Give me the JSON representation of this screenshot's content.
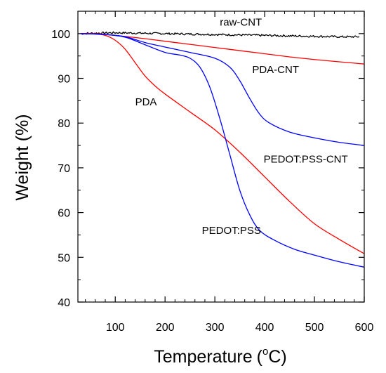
{
  "chart_data": {
    "type": "line",
    "xlabel": "Temperature",
    "xlabel_unit_base": "(",
    "xlabel_unit_sup": "o",
    "xlabel_unit_rest": "C)",
    "ylabel": "Weight (%)",
    "xlim": [
      25,
      600
    ],
    "ylim": [
      40,
      105
    ],
    "x_ticks": [
      100,
      200,
      300,
      400,
      500,
      600
    ],
    "y_ticks": [
      40,
      50,
      60,
      70,
      80,
      90,
      100
    ],
    "x_minor_step": 20,
    "y_minor_step": 5,
    "grid": false,
    "series": [
      {
        "name": "raw-CNT",
        "color": "#000000",
        "noisy": true,
        "points": [
          [
            30,
            100.0
          ],
          [
            60,
            100.1
          ],
          [
            100,
            100.2
          ],
          [
            150,
            100.1
          ],
          [
            200,
            100.0
          ],
          [
            250,
            99.9
          ],
          [
            300,
            99.8
          ],
          [
            350,
            99.7
          ],
          [
            400,
            99.6
          ],
          [
            450,
            99.5
          ],
          [
            500,
            99.4
          ],
          [
            550,
            99.3
          ],
          [
            590,
            99.3
          ]
        ]
      },
      {
        "name": "PDA-CNT",
        "color": "#ff0000",
        "noisy": false,
        "points": [
          [
            30,
            100.0
          ],
          [
            60,
            100.0
          ],
          [
            100,
            99.6
          ],
          [
            150,
            99.0
          ],
          [
            200,
            98.3
          ],
          [
            250,
            97.6
          ],
          [
            300,
            96.9
          ],
          [
            350,
            96.2
          ],
          [
            400,
            95.5
          ],
          [
            450,
            94.8
          ],
          [
            500,
            94.2
          ],
          [
            550,
            93.7
          ],
          [
            600,
            93.2
          ]
        ]
      },
      {
        "name": "PDA",
        "color": "#ff0000",
        "noisy": false,
        "points": [
          [
            30,
            100.0
          ],
          [
            60,
            99.9
          ],
          [
            80,
            99.6
          ],
          [
            100,
            98.5
          ],
          [
            120,
            96.5
          ],
          [
            140,
            93.5
          ],
          [
            160,
            90.5
          ],
          [
            180,
            88.3
          ],
          [
            200,
            86.5
          ],
          [
            250,
            82.5
          ],
          [
            300,
            78.5
          ],
          [
            350,
            73.5
          ],
          [
            400,
            68.0
          ],
          [
            450,
            62.5
          ],
          [
            500,
            57.5
          ],
          [
            550,
            54.0
          ],
          [
            600,
            50.8
          ]
        ]
      },
      {
        "name": "PEDOT:PSS-CNT",
        "color": "#0000ff",
        "noisy": false,
        "points": [
          [
            30,
            100.0
          ],
          [
            80,
            99.8
          ],
          [
            120,
            99.3
          ],
          [
            160,
            98.0
          ],
          [
            200,
            97.0
          ],
          [
            250,
            95.8
          ],
          [
            300,
            94.5
          ],
          [
            330,
            92.5
          ],
          [
            350,
            89.5
          ],
          [
            370,
            85.5
          ],
          [
            390,
            82.0
          ],
          [
            410,
            80.0
          ],
          [
            450,
            78.0
          ],
          [
            500,
            76.7
          ],
          [
            550,
            75.7
          ],
          [
            600,
            75.0
          ]
        ]
      },
      {
        "name": "PEDOT:PSS",
        "color": "#0000ff",
        "noisy": false,
        "points": [
          [
            30,
            100.0
          ],
          [
            80,
            99.8
          ],
          [
            120,
            99.2
          ],
          [
            160,
            97.5
          ],
          [
            200,
            95.8
          ],
          [
            230,
            95.2
          ],
          [
            250,
            94.5
          ],
          [
            270,
            92.5
          ],
          [
            290,
            88.0
          ],
          [
            310,
            81.0
          ],
          [
            330,
            73.0
          ],
          [
            350,
            65.0
          ],
          [
            370,
            59.5
          ],
          [
            390,
            56.0
          ],
          [
            420,
            53.8
          ],
          [
            460,
            51.8
          ],
          [
            500,
            50.5
          ],
          [
            550,
            49.0
          ],
          [
            600,
            47.8
          ]
        ]
      }
    ],
    "annotations": [
      {
        "name": "raw-CNT",
        "text": "raw-CNT",
        "x": 310,
        "y": 101.8
      },
      {
        "name": "PDA-CNT",
        "text": "PDA-CNT",
        "x": 375,
        "y": 91.2
      },
      {
        "name": "PDA",
        "text": "PDA",
        "x": 140,
        "y": 84.0
      },
      {
        "name": "PEDOT:PSS-CNT",
        "text": "PEDOT:PSS-CNT",
        "x": 398,
        "y": 71.2
      },
      {
        "name": "PEDOT:PSS",
        "text": "PEDOT:PSS",
        "x": 274,
        "y": 55.2
      }
    ]
  }
}
